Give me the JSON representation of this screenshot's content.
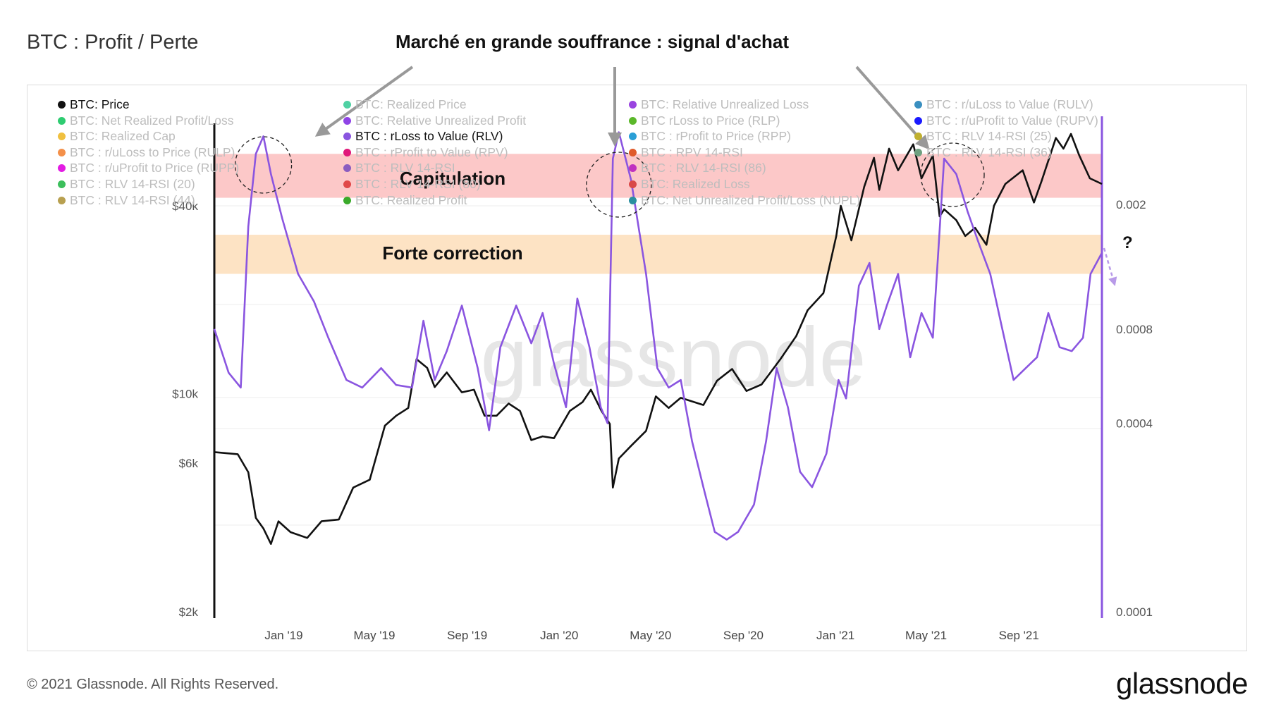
{
  "header": {
    "title": "BTC : Profit / Perte",
    "annotation_title": "Marché en grande souffrance : signal d'achat"
  },
  "footer": {
    "copyright": "© 2021 Glassnode. All Rights Reserved.",
    "logo": "glassnode"
  },
  "watermark": "glassnode",
  "legend": [
    {
      "label": "BTC: Price",
      "color": "#111111",
      "active": true
    },
    {
      "label": "BTC: Net Realized Profit/Loss",
      "color": "#2ecc71",
      "active": false
    },
    {
      "label": "BTC: Realized Cap",
      "color": "#f0c040",
      "active": false
    },
    {
      "label": "BTC : r/uLoss to Price (RULP)",
      "color": "#f4904a",
      "active": false
    },
    {
      "label": "BTC : r/uProfit to Price (RUPP)",
      "color": "#e31ce3",
      "active": false
    },
    {
      "label": "BTC : RLV 14-RSI (20)",
      "color": "#3cbf5c",
      "active": false
    },
    {
      "label": "BTC : RLV 14-RSI (44)",
      "color": "#b8a050",
      "active": false
    },
    {
      "label": "BTC: Realized Price",
      "color": "#4fd1a3",
      "active": false
    },
    {
      "label": "BTC: Relative Unrealized Profit",
      "color": "#8f44e6",
      "active": false
    },
    {
      "label": "BTC : rLoss to Value (RLV)",
      "color": "#8a55e0",
      "active": true
    },
    {
      "label": "BTC : rProfit to Value (RPV)",
      "color": "#e0177a",
      "active": false
    },
    {
      "label": "BTC : RLV 14-RSI",
      "color": "#8a5cc0",
      "active": false
    },
    {
      "label": "BTC : RLV 14-RSI (80)",
      "color": "#e04848",
      "active": false
    },
    {
      "label": "BTC: Realized Profit",
      "color": "#3aaa2a",
      "active": false
    },
    {
      "label": "BTC: Relative Unrealized Loss",
      "color": "#9a44e0",
      "active": false
    },
    {
      "label": "BTC rLoss to Price (RLP)",
      "color": "#5bb82a",
      "active": false
    },
    {
      "label": "BTC : rProfit to Price (RPP)",
      "color": "#2a9fd6",
      "active": false
    },
    {
      "label": "BTC : RPV 14-RSI",
      "color": "#e05a2a",
      "active": false
    },
    {
      "label": "BTC : RLV 14-RSI (86)",
      "color": "#c032c0",
      "active": false
    },
    {
      "label": "BTC: Realized Loss",
      "color": "#d94848",
      "active": false
    },
    {
      "label": "BTC: Net Unrealized Profit/Loss (NUPL)",
      "color": "#2a8fa0",
      "active": false
    },
    {
      "label": "BTC : r/uLoss to Value (RULV)",
      "color": "#3a8fc0",
      "active": false
    },
    {
      "label": "BTC : r/uProfit to Value (RUPV)",
      "color": "#1a1aff",
      "active": false
    },
    {
      "label": "BTC : RLV 14-RSI (25)",
      "color": "#c0b030",
      "active": false
    },
    {
      "label": "BTC : RLV 14-RSI (36)",
      "color": "#70a080",
      "active": false
    }
  ],
  "zones": [
    {
      "label": "Capitulation",
      "color": "#fcc8c8"
    },
    {
      "label": "Forte correction",
      "color": "#fde3c4"
    }
  ],
  "question_mark": "?",
  "chart_data": {
    "type": "line",
    "x_ticks": [
      "Jan '19",
      "May '19",
      "Sep '19",
      "Jan '20",
      "May '20",
      "Sep '20",
      "Jan '21",
      "May '21",
      "Sep '21"
    ],
    "y_left": {
      "scale": "log",
      "ticks": [
        "$2k",
        "$6k",
        "$10k",
        "$40k"
      ],
      "tick_values": [
        2000,
        6000,
        10000,
        40000
      ],
      "range": [
        2000,
        85000
      ]
    },
    "y_right": {
      "scale": "log",
      "ticks": [
        "0.0001",
        "0.0004",
        "0.0008",
        "0.002"
      ],
      "tick_values": [
        0.0001,
        0.0004,
        0.0008,
        0.002
      ],
      "range": [
        0.0001,
        0.004
      ]
    },
    "series": [
      {
        "name": "BTC: Price",
        "axis": "left",
        "color": "#111111",
        "points": [
          [
            "2018-10-01",
            6500
          ],
          [
            "2018-11-01",
            6400
          ],
          [
            "2018-11-15",
            5600
          ],
          [
            "2018-11-25",
            4000
          ],
          [
            "2018-12-05",
            3700
          ],
          [
            "2018-12-15",
            3300
          ],
          [
            "2018-12-25",
            3900
          ],
          [
            "2019-01-10",
            3600
          ],
          [
            "2019-02-01",
            3450
          ],
          [
            "2019-02-20",
            3900
          ],
          [
            "2019-03-15",
            3950
          ],
          [
            "2019-04-03",
            5000
          ],
          [
            "2019-04-25",
            5300
          ],
          [
            "2019-05-15",
            7900
          ],
          [
            "2019-05-30",
            8500
          ],
          [
            "2019-06-15",
            9000
          ],
          [
            "2019-06-26",
            12900
          ],
          [
            "2019-07-10",
            12100
          ],
          [
            "2019-07-20",
            10500
          ],
          [
            "2019-08-05",
            11700
          ],
          [
            "2019-08-25",
            10100
          ],
          [
            "2019-09-10",
            10300
          ],
          [
            "2019-09-24",
            8500
          ],
          [
            "2019-10-10",
            8500
          ],
          [
            "2019-10-26",
            9300
          ],
          [
            "2019-11-10",
            8800
          ],
          [
            "2019-11-25",
            7100
          ],
          [
            "2019-12-10",
            7300
          ],
          [
            "2019-12-25",
            7200
          ],
          [
            "2020-01-15",
            8800
          ],
          [
            "2020-02-01",
            9400
          ],
          [
            "2020-02-12",
            10300
          ],
          [
            "2020-02-26",
            8800
          ],
          [
            "2020-03-08",
            8000
          ],
          [
            "2020-03-12",
            5000
          ],
          [
            "2020-03-20",
            6200
          ],
          [
            "2020-04-05",
            6800
          ],
          [
            "2020-04-25",
            7600
          ],
          [
            "2020-05-08",
            9800
          ],
          [
            "2020-05-25",
            9000
          ],
          [
            "2020-06-10",
            9700
          ],
          [
            "2020-07-10",
            9200
          ],
          [
            "2020-07-28",
            11000
          ],
          [
            "2020-08-17",
            12000
          ],
          [
            "2020-09-05",
            10200
          ],
          [
            "2020-09-25",
            10700
          ],
          [
            "2020-10-20",
            12900
          ],
          [
            "2020-11-10",
            15300
          ],
          [
            "2020-11-25",
            18500
          ],
          [
            "2020-12-16",
            21000
          ],
          [
            "2021-01-02",
            32000
          ],
          [
            "2021-01-08",
            40000
          ],
          [
            "2021-01-22",
            31000
          ],
          [
            "2021-02-08",
            46000
          ],
          [
            "2021-02-21",
            57000
          ],
          [
            "2021-02-28",
            45000
          ],
          [
            "2021-03-13",
            61000
          ],
          [
            "2021-03-25",
            52000
          ],
          [
            "2021-04-14",
            63000
          ],
          [
            "2021-04-25",
            49000
          ],
          [
            "2021-05-10",
            58000
          ],
          [
            "2021-05-19",
            37000
          ],
          [
            "2021-05-25",
            39000
          ],
          [
            "2021-06-10",
            36000
          ],
          [
            "2021-06-22",
            32000
          ],
          [
            "2021-07-05",
            34000
          ],
          [
            "2021-07-20",
            30000
          ],
          [
            "2021-07-30",
            40000
          ],
          [
            "2021-08-14",
            47000
          ],
          [
            "2021-09-06",
            52000
          ],
          [
            "2021-09-21",
            41000
          ],
          [
            "2021-10-01",
            48000
          ],
          [
            "2021-10-20",
            66000
          ],
          [
            "2021-10-30",
            61000
          ],
          [
            "2021-11-09",
            68000
          ],
          [
            "2021-11-20",
            58000
          ],
          [
            "2021-12-04",
            49000
          ],
          [
            "2021-12-20",
            47000
          ]
        ]
      },
      {
        "name": "BTC : rLoss to Value (RLV)",
        "axis": "right",
        "color": "#8a55e0",
        "points": [
          [
            "2018-10-01",
            0.0008
          ],
          [
            "2018-10-20",
            0.00058
          ],
          [
            "2018-11-05",
            0.00052
          ],
          [
            "2018-11-15",
            0.0017
          ],
          [
            "2018-11-25",
            0.0029
          ],
          [
            "2018-12-05",
            0.0033
          ],
          [
            "2018-12-15",
            0.0025
          ],
          [
            "2018-12-30",
            0.0018
          ],
          [
            "2019-01-20",
            0.0012
          ],
          [
            "2019-02-10",
            0.00098
          ],
          [
            "2019-03-01",
            0.00075
          ],
          [
            "2019-03-25",
            0.00055
          ],
          [
            "2019-04-15",
            0.00052
          ],
          [
            "2019-05-10",
            0.0006
          ],
          [
            "2019-05-30",
            0.00053
          ],
          [
            "2019-06-20",
            0.00052
          ],
          [
            "2019-07-05",
            0.00085
          ],
          [
            "2019-07-20",
            0.00055
          ],
          [
            "2019-08-05",
            0.00068
          ],
          [
            "2019-08-25",
            0.00095
          ],
          [
            "2019-09-15",
            0.0006
          ],
          [
            "2019-09-30",
            0.00038
          ],
          [
            "2019-10-15",
            0.0007
          ],
          [
            "2019-11-05",
            0.00095
          ],
          [
            "2019-11-25",
            0.00072
          ],
          [
            "2019-12-10",
            0.0009
          ],
          [
            "2019-12-25",
            0.00062
          ],
          [
            "2020-01-10",
            0.00045
          ],
          [
            "2020-01-25",
            0.001
          ],
          [
            "2020-02-10",
            0.0007
          ],
          [
            "2020-02-25",
            0.00045
          ],
          [
            "2020-03-05",
            0.0004
          ],
          [
            "2020-03-12",
            0.0028
          ],
          [
            "2020-03-20",
            0.0034
          ],
          [
            "2020-04-05",
            0.0024
          ],
          [
            "2020-04-25",
            0.0012
          ],
          [
            "2020-05-10",
            0.0006
          ],
          [
            "2020-05-25",
            0.00052
          ],
          [
            "2020-06-10",
            0.00055
          ],
          [
            "2020-06-25",
            0.00035
          ],
          [
            "2020-07-10",
            0.00025
          ],
          [
            "2020-07-25",
            0.00018
          ],
          [
            "2020-08-10",
            0.00017
          ],
          [
            "2020-08-25",
            0.00018
          ],
          [
            "2020-09-15",
            0.00022
          ],
          [
            "2020-10-01",
            0.00035
          ],
          [
            "2020-10-15",
            0.0006
          ],
          [
            "2020-10-30",
            0.00045
          ],
          [
            "2020-11-15",
            0.00028
          ],
          [
            "2020-12-01",
            0.00025
          ],
          [
            "2020-12-20",
            0.00032
          ],
          [
            "2021-01-05",
            0.00055
          ],
          [
            "2021-01-15",
            0.00048
          ],
          [
            "2021-02-01",
            0.0011
          ],
          [
            "2021-02-15",
            0.0013
          ],
          [
            "2021-02-28",
            0.0008
          ],
          [
            "2021-03-10",
            0.00095
          ],
          [
            "2021-03-25",
            0.0012
          ],
          [
            "2021-04-10",
            0.00065
          ],
          [
            "2021-04-25",
            0.0009
          ],
          [
            "2021-05-10",
            0.00075
          ],
          [
            "2021-05-25",
            0.0028
          ],
          [
            "2021-06-10",
            0.0025
          ],
          [
            "2021-06-25",
            0.0019
          ],
          [
            "2021-07-10",
            0.0015
          ],
          [
            "2021-07-25",
            0.0012
          ],
          [
            "2021-08-10",
            0.0008
          ],
          [
            "2021-08-25",
            0.00055
          ],
          [
            "2021-09-10",
            0.0006
          ],
          [
            "2021-09-25",
            0.00065
          ],
          [
            "2021-10-10",
            0.0009
          ],
          [
            "2021-10-25",
            0.0007
          ],
          [
            "2021-11-10",
            0.00068
          ],
          [
            "2021-11-25",
            0.00075
          ],
          [
            "2021-12-05",
            0.0012
          ],
          [
            "2021-12-20",
            0.0014
          ]
        ]
      }
    ],
    "bands": [
      {
        "label": "Capitulation",
        "axis": "right",
        "range": [
          0.0021,
          0.0029
        ]
      },
      {
        "label": "Forte correction",
        "axis": "right",
        "range": [
          0.0012,
          0.0016
        ]
      }
    ]
  }
}
